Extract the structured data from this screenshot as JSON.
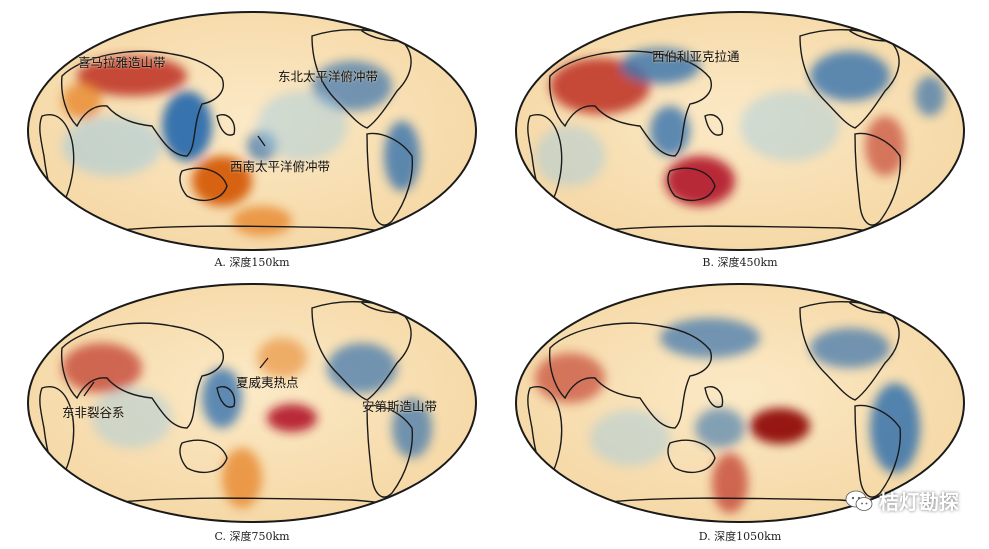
{
  "panels": [
    {
      "caption": "A. 深度150km",
      "labels": [
        "喜马拉雅造山带",
        "东北太平洋俯冲带",
        "西南太平洋俯冲带"
      ]
    },
    {
      "caption": "B. 深度450km",
      "labels": [
        "西伯利亚克拉通"
      ]
    },
    {
      "caption": "C. 深度750km",
      "labels": [
        "东非裂谷系",
        "夏威夷热点",
        "安第斯造山带"
      ]
    },
    {
      "caption": "D. 深度1050km",
      "labels": []
    }
  ],
  "watermark": {
    "text": "桔灯勘探",
    "icon": "wechat-icon"
  },
  "colors": {
    "hot": "#b2182b",
    "warm": "#f4a261",
    "neutral": "#f9e4bd",
    "cold": "#2166ac",
    "coast": "#1a1a1a"
  }
}
